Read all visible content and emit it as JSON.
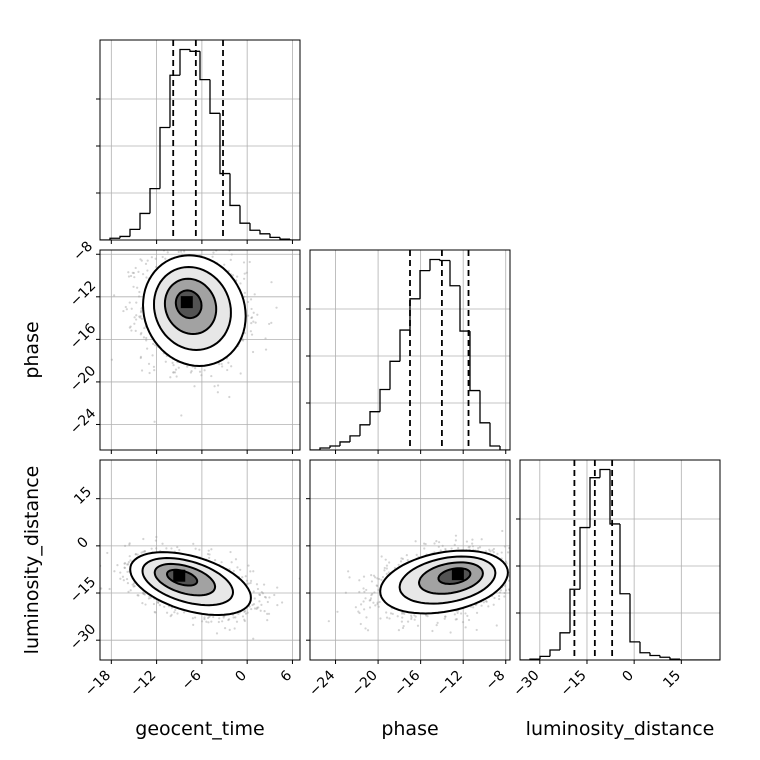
{
  "chart_data": {
    "type": "corner",
    "parameters": [
      "geocent_time",
      "phase",
      "luminosity_distance"
    ],
    "axis_labels": {
      "geocent_time": "geocent_time",
      "phase": "phase",
      "luminosity_distance": "luminosity_distance"
    },
    "ranges": {
      "geocent_time": [
        -19.5,
        7.0
      ],
      "phase": [
        -26.4,
        -7.6
      ],
      "luminosity_distance": [
        -36.3,
        27.3
      ]
    },
    "ticks": {
      "geocent_time": [
        -18,
        -12,
        -6,
        0,
        6
      ],
      "phase": [
        -24,
        -20,
        -16,
        -12,
        -8
      ],
      "luminosity_distance": [
        -30,
        -15,
        0,
        15
      ]
    },
    "quantiles": {
      "geocent_time": [
        -9.8,
        -6.8,
        -3.2
      ],
      "phase": [
        -17.0,
        -14.0,
        -11.5
      ],
      "luminosity_distance": [
        -19.0,
        -12.5,
        -7.0
      ]
    },
    "histograms": {
      "geocent_time": {
        "bins": 20,
        "counts": [
          0,
          2,
          4,
          12,
          30,
          58,
          127,
          186,
          215,
          213,
          181,
          143,
          75,
          39,
          19,
          11,
          7,
          3,
          1,
          0
        ]
      },
      "phase": {
        "bins": 20,
        "counts": [
          0,
          2,
          4,
          8,
          14,
          25,
          38,
          60,
          88,
          119,
          150,
          178,
          189,
          188,
          163,
          118,
          59,
          27,
          4,
          0
        ]
      },
      "luminosity_distance": {
        "bins": 20,
        "counts": [
          0,
          1,
          4,
          11,
          30,
          78,
          146,
          201,
          210,
          150,
          73,
          20,
          8,
          5,
          3,
          1,
          0,
          0,
          0,
          0
        ]
      }
    },
    "pairs": [
      {
        "x": "geocent_time",
        "y": "phase",
        "mean": [
          -7.0,
          -13.3
        ],
        "sd": [
          3.4,
          2.6
        ],
        "corr": -0.1,
        "peak": [
          -8.0,
          -12.5
        ]
      },
      {
        "x": "geocent_time",
        "y": "luminosity_distance",
        "mean": [
          -7.5,
          -12.0
        ],
        "sd": [
          4.0,
          5.0
        ],
        "corr": -0.45,
        "peak": [
          -9.0,
          -9.5
        ]
      },
      {
        "x": "phase",
        "y": "luminosity_distance",
        "mean": [
          -13.8,
          -11.5
        ],
        "sd": [
          3.0,
          5.0
        ],
        "corr": 0.3,
        "peak": [
          -12.5,
          -9.0
        ]
      }
    ],
    "contour_levels": [
      0.5,
      1.0,
      1.5,
      2.0
    ],
    "grid": true,
    "colors": {
      "contour": "#000000",
      "density": "#000000",
      "scatter": "#9e9e9e",
      "grid": "#b0b0b0"
    }
  }
}
